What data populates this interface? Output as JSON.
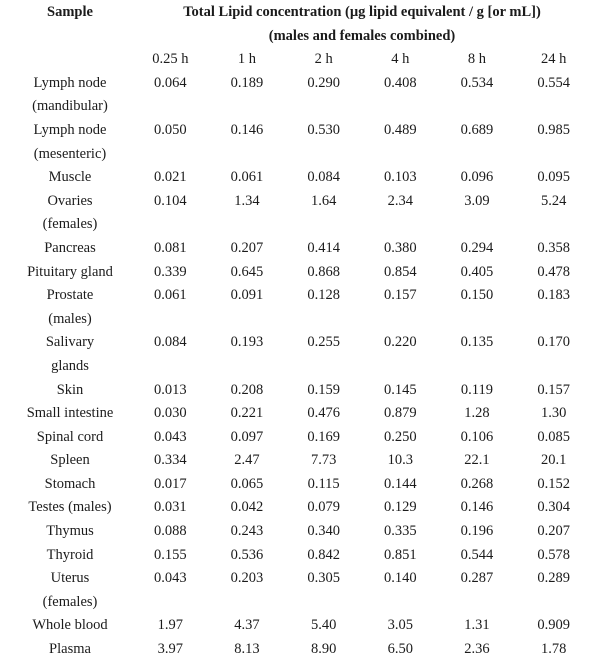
{
  "document": {
    "header": {
      "sample_label": "Sample",
      "title_line1": "Total Lipid concentration (µg lipid equivalent / g [or mL])",
      "title_line2": "(males and females combined)",
      "time_columns": [
        "0.25 h",
        "1 h",
        "2 h",
        "4 h",
        "8 h",
        "24 h"
      ]
    },
    "rows": [
      {
        "sample": "Lymph node\n(mandibular)",
        "values": [
          "0.064",
          "0.189",
          "0.290",
          "0.408",
          "0.534",
          "0.554"
        ]
      },
      {
        "sample": "Lymph node\n(mesenteric)",
        "values": [
          "0.050",
          "0.146",
          "0.530",
          "0.489",
          "0.689",
          "0.985"
        ]
      },
      {
        "sample": "Muscle",
        "values": [
          "0.021",
          "0.061",
          "0.084",
          "0.103",
          "0.096",
          "0.095"
        ]
      },
      {
        "sample": "Ovaries\n(females)",
        "values": [
          "0.104",
          "1.34",
          "1.64",
          "2.34",
          "3.09",
          "5.24"
        ]
      },
      {
        "sample": "Pancreas",
        "values": [
          "0.081",
          "0.207",
          "0.414",
          "0.380",
          "0.294",
          "0.358"
        ]
      },
      {
        "sample": "Pituitary gland",
        "values": [
          "0.339",
          "0.645",
          "0.868",
          "0.854",
          "0.405",
          "0.478"
        ]
      },
      {
        "sample": "Prostate\n(males)",
        "values": [
          "0.061",
          "0.091",
          "0.128",
          "0.157",
          "0.150",
          "0.183"
        ]
      },
      {
        "sample": "Salivary\nglands",
        "values": [
          "0.084",
          "0.193",
          "0.255",
          "0.220",
          "0.135",
          "0.170"
        ]
      },
      {
        "sample": "Skin",
        "values": [
          "0.013",
          "0.208",
          "0.159",
          "0.145",
          "0.119",
          "0.157"
        ]
      },
      {
        "sample": "Small intestine",
        "values": [
          "0.030",
          "0.221",
          "0.476",
          "0.879",
          "1.28",
          "1.30"
        ]
      },
      {
        "sample": "Spinal cord",
        "values": [
          "0.043",
          "0.097",
          "0.169",
          "0.250",
          "0.106",
          "0.085"
        ]
      },
      {
        "sample": "Spleen",
        "values": [
          "0.334",
          "2.47",
          "7.73",
          "10.3",
          "22.1",
          "20.1"
        ]
      },
      {
        "sample": "Stomach",
        "values": [
          "0.017",
          "0.065",
          "0.115",
          "0.144",
          "0.268",
          "0.152"
        ]
      },
      {
        "sample": "Testes (males)",
        "values": [
          "0.031",
          "0.042",
          "0.079",
          "0.129",
          "0.146",
          "0.304"
        ]
      },
      {
        "sample": "Thymus",
        "values": [
          "0.088",
          "0.243",
          "0.340",
          "0.335",
          "0.196",
          "0.207"
        ]
      },
      {
        "sample": "Thyroid",
        "values": [
          "0.155",
          "0.536",
          "0.842",
          "0.851",
          "0.544",
          "0.578"
        ]
      },
      {
        "sample": "Uterus\n(females)",
        "values": [
          "0.043",
          "0.203",
          "0.305",
          "0.140",
          "0.287",
          "0.289"
        ]
      },
      {
        "sample": "Whole blood",
        "values": [
          "1.97",
          "4.37",
          "5.40",
          "3.05",
          "1.31",
          "0.909"
        ]
      },
      {
        "sample": "Plasma",
        "values": [
          "3.97",
          "8.13",
          "8.90",
          "6.50",
          "2.36",
          "1.78"
        ]
      }
    ]
  },
  "chart_data": {
    "type": "table",
    "title": "Total Lipid concentration (µg lipid equivalent / g [or mL]) (males and females combined)",
    "columns": [
      "Sample",
      "0.25 h",
      "1 h",
      "2 h",
      "4 h",
      "8 h",
      "24 h"
    ],
    "rows": [
      [
        "Lymph node (mandibular)",
        0.064,
        0.189,
        0.29,
        0.408,
        0.534,
        0.554
      ],
      [
        "Lymph node (mesenteric)",
        0.05,
        0.146,
        0.53,
        0.489,
        0.689,
        0.985
      ],
      [
        "Muscle",
        0.021,
        0.061,
        0.084,
        0.103,
        0.096,
        0.095
      ],
      [
        "Ovaries (females)",
        0.104,
        1.34,
        1.64,
        2.34,
        3.09,
        5.24
      ],
      [
        "Pancreas",
        0.081,
        0.207,
        0.414,
        0.38,
        0.294,
        0.358
      ],
      [
        "Pituitary gland",
        0.339,
        0.645,
        0.868,
        0.854,
        0.405,
        0.478
      ],
      [
        "Prostate (males)",
        0.061,
        0.091,
        0.128,
        0.157,
        0.15,
        0.183
      ],
      [
        "Salivary glands",
        0.084,
        0.193,
        0.255,
        0.22,
        0.135,
        0.17
      ],
      [
        "Skin",
        0.013,
        0.208,
        0.159,
        0.145,
        0.119,
        0.157
      ],
      [
        "Small intestine",
        0.03,
        0.221,
        0.476,
        0.879,
        1.28,
        1.3
      ],
      [
        "Spinal cord",
        0.043,
        0.097,
        0.169,
        0.25,
        0.106,
        0.085
      ],
      [
        "Spleen",
        0.334,
        2.47,
        7.73,
        10.3,
        22.1,
        20.1
      ],
      [
        "Stomach",
        0.017,
        0.065,
        0.115,
        0.144,
        0.268,
        0.152
      ],
      [
        "Testes (males)",
        0.031,
        0.042,
        0.079,
        0.129,
        0.146,
        0.304
      ],
      [
        "Thymus",
        0.088,
        0.243,
        0.34,
        0.335,
        0.196,
        0.207
      ],
      [
        "Thyroid",
        0.155,
        0.536,
        0.842,
        0.851,
        0.544,
        0.578
      ],
      [
        "Uterus (females)",
        0.043,
        0.203,
        0.305,
        0.14,
        0.287,
        0.289
      ],
      [
        "Whole blood",
        1.97,
        4.37,
        5.4,
        3.05,
        1.31,
        0.909
      ],
      [
        "Plasma",
        3.97,
        8.13,
        8.9,
        6.5,
        2.36,
        1.78
      ]
    ]
  }
}
